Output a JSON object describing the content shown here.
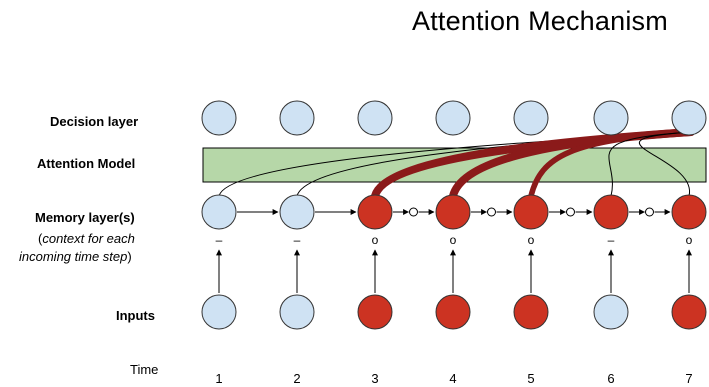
{
  "title": "Attention Mechanism",
  "row_labels": {
    "decision": "Decision layer",
    "attention": "Attention Model",
    "memory": "Memory layer(s)",
    "memory_sub_line1_open": "(",
    "memory_sub_line1_italic": "context for each",
    "memory_sub_line2_italic": "incoming time step",
    "memory_sub_line2_close": ")",
    "inputs": "Inputs",
    "time": "Time"
  },
  "time_steps": [
    "1",
    "2",
    "3",
    "4",
    "5",
    "6",
    "7"
  ],
  "input_active": [
    false,
    false,
    true,
    true,
    true,
    false,
    true
  ],
  "memory_active": [
    false,
    false,
    true,
    true,
    true,
    true,
    true
  ],
  "memory_markers": [
    "–",
    "–",
    "o",
    "o",
    "o",
    "–",
    "o"
  ],
  "attention_weights": [
    0.15,
    0.15,
    1.0,
    1.0,
    0.6,
    0.3,
    0.3
  ],
  "colors": {
    "inactive_fill": "#cfe2f3",
    "active_fill": "#cc3322",
    "attention_band": "#b6d7a8",
    "attention_curve_strong": "#8b1a1a",
    "attention_curve_weak": "#000000"
  }
}
